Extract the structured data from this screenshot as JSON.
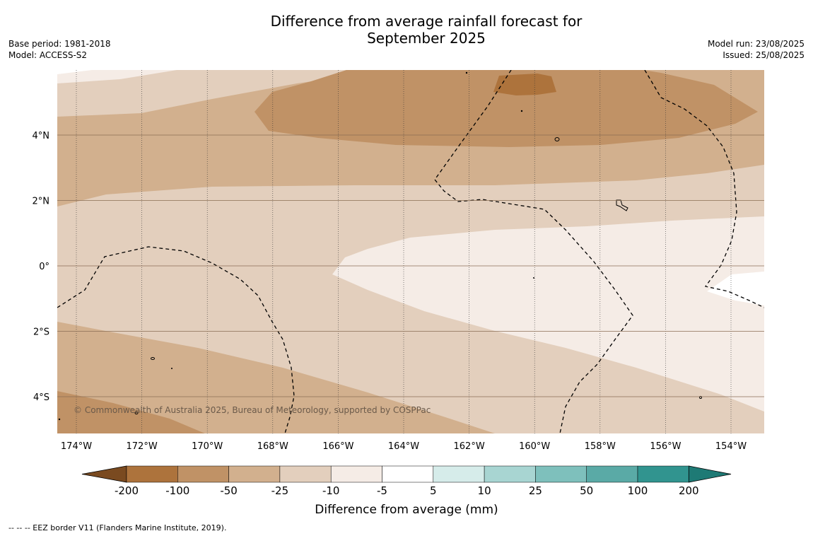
{
  "title_line1": "Difference from average rainfall forecast for",
  "title_line2": "September 2025",
  "base_period": "Base period: 1981-2018",
  "model": "Model: ACCESS-S2",
  "model_run": "Model run: 23/08/2025",
  "issued": "Issued: 25/08/2025",
  "copyright": "© Commonwealth of Australia 2025, Bureau of Meteorology, supported by COSPPac",
  "colorbar_label": "Difference from average (mm)",
  "footer_note": "--  --  -- EEZ border V11 (Flanders Marine Institute, 2019).",
  "lon_labels": [
    "174°W",
    "172°W",
    "170°W",
    "168°W",
    "166°W",
    "164°W",
    "162°W",
    "160°W",
    "158°W",
    "156°W",
    "154°W"
  ],
  "lat_labels": [
    "4°N",
    "2°N",
    "0°",
    "2°S",
    "4°S"
  ],
  "colorbar": {
    "ticks": [
      "-200",
      "-100",
      "-50",
      "-25",
      "-10",
      "-5",
      "5",
      "10",
      "25",
      "50",
      "100",
      "200"
    ],
    "colors": [
      "#7a4a20",
      "#ad733c",
      "#c09266",
      "#d2b08e",
      "#e3cfbd",
      "#f5ece6",
      "#ffffff",
      "#d6ecea",
      "#a8d5d2",
      "#7ec0bc",
      "#5aaaa6",
      "#31948f",
      "#1e7a75"
    ]
  }
}
